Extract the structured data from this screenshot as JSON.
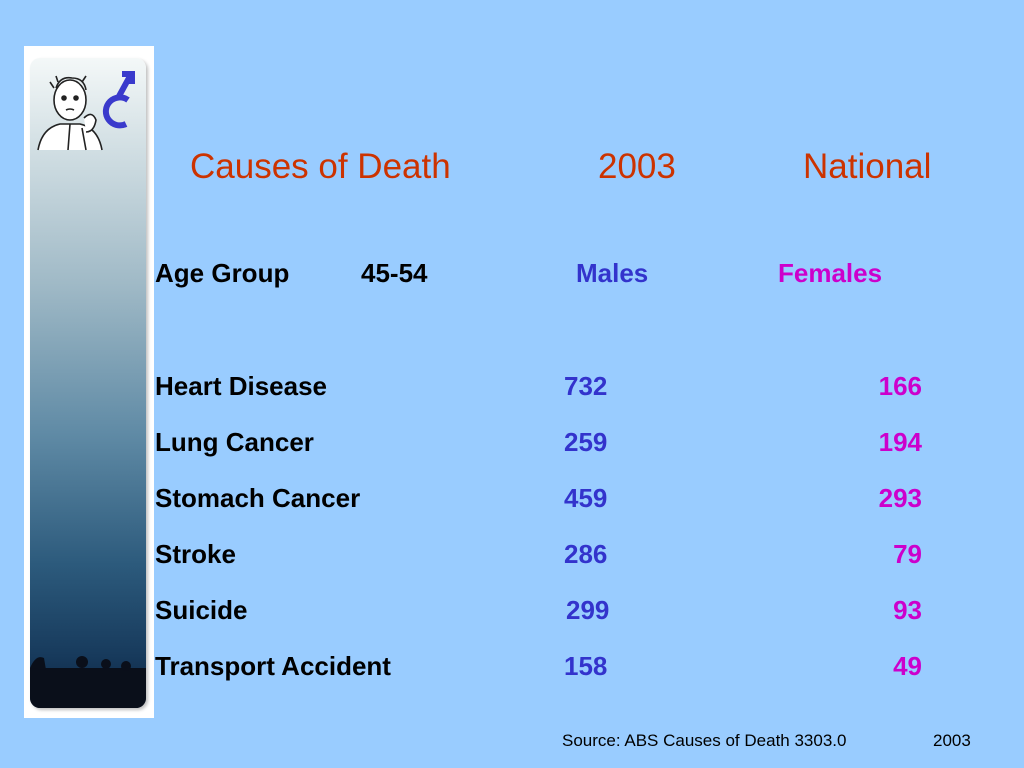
{
  "title": {
    "causes": "Causes of Death",
    "year": "2003",
    "region": "National"
  },
  "header": {
    "age_label": "Age Group",
    "age_value": "45-54",
    "males": "Males",
    "females": "Females"
  },
  "rows": [
    {
      "cause": "Heart Disease",
      "males": "732",
      "females": "166"
    },
    {
      "cause": "Lung Cancer",
      "males": "259",
      "females": "194"
    },
    {
      "cause": "Stomach Cancer",
      "males": "459",
      "females": "293"
    },
    {
      "cause": "Stroke",
      "males": "286",
      "females": "79"
    },
    {
      "cause": "Suicide",
      "males": "299",
      "females": "93"
    },
    {
      "cause": "Transport Accident",
      "males": "158",
      "females": "49"
    }
  ],
  "source": {
    "text": "Source:  ABS Causes of Death 3303.0",
    "year": "2003"
  },
  "colors": {
    "background": "#99ccff",
    "title": "#cc3300",
    "males": "#3333cc",
    "females": "#cc00cc"
  },
  "icons": {
    "logo": "thinking-man-with-male-symbol-icon",
    "silhouette": "people-silhouette-icon"
  }
}
